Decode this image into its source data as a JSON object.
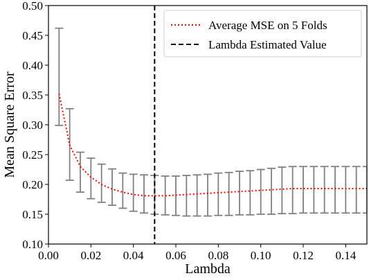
{
  "chart_data": {
    "type": "line",
    "xlabel": "Lambda",
    "ylabel": "Mean Square Error",
    "xlim": [
      0.0,
      0.15
    ],
    "ylim": [
      0.1,
      0.5
    ],
    "xticks": [
      "0.00",
      "0.02",
      "0.04",
      "0.06",
      "0.08",
      "0.10",
      "0.12",
      "0.14"
    ],
    "yticks": [
      "0.10",
      "0.15",
      "0.20",
      "0.25",
      "0.30",
      "0.35",
      "0.40",
      "0.45",
      "0.50"
    ],
    "grid": false,
    "legend_position": "top-right",
    "series": [
      {
        "name": "Average MSE on 5 Folds",
        "style": "dotted",
        "color": "#ff0000",
        "x": [
          0.005,
          0.01,
          0.015,
          0.02,
          0.025,
          0.03,
          0.035,
          0.04,
          0.045,
          0.05,
          0.055,
          0.06,
          0.065,
          0.07,
          0.075,
          0.08,
          0.085,
          0.09,
          0.095,
          0.1,
          0.105,
          0.11,
          0.115,
          0.12,
          0.125,
          0.13,
          0.135,
          0.14,
          0.145,
          0.15
        ],
        "y": [
          0.352,
          0.266,
          0.23,
          0.212,
          0.2,
          0.192,
          0.187,
          0.183,
          0.181,
          0.181,
          0.181,
          0.182,
          0.183,
          0.184,
          0.185,
          0.186,
          0.187,
          0.188,
          0.189,
          0.19,
          0.191,
          0.192,
          0.193,
          0.193,
          0.193,
          0.193,
          0.193,
          0.193,
          0.193,
          0.193
        ],
        "error_low": [
          0.299,
          0.207,
          0.187,
          0.176,
          0.17,
          0.165,
          0.16,
          0.155,
          0.152,
          0.15,
          0.149,
          0.148,
          0.147,
          0.147,
          0.147,
          0.148,
          0.148,
          0.149,
          0.149,
          0.15,
          0.15,
          0.151,
          0.151,
          0.152,
          0.152,
          0.152,
          0.152,
          0.152,
          0.152,
          0.152
        ],
        "error_high": [
          0.462,
          0.327,
          0.254,
          0.244,
          0.234,
          0.226,
          0.219,
          0.217,
          0.216,
          0.215,
          0.214,
          0.214,
          0.215,
          0.216,
          0.217,
          0.219,
          0.22,
          0.222,
          0.223,
          0.225,
          0.227,
          0.229,
          0.23,
          0.23,
          0.23,
          0.23,
          0.23,
          0.23,
          0.23,
          0.23
        ],
        "error_color": "#808080"
      },
      {
        "name": "Lambda Estimated Value",
        "style": "dashed",
        "color": "#000000",
        "x_value": 0.05
      }
    ]
  }
}
